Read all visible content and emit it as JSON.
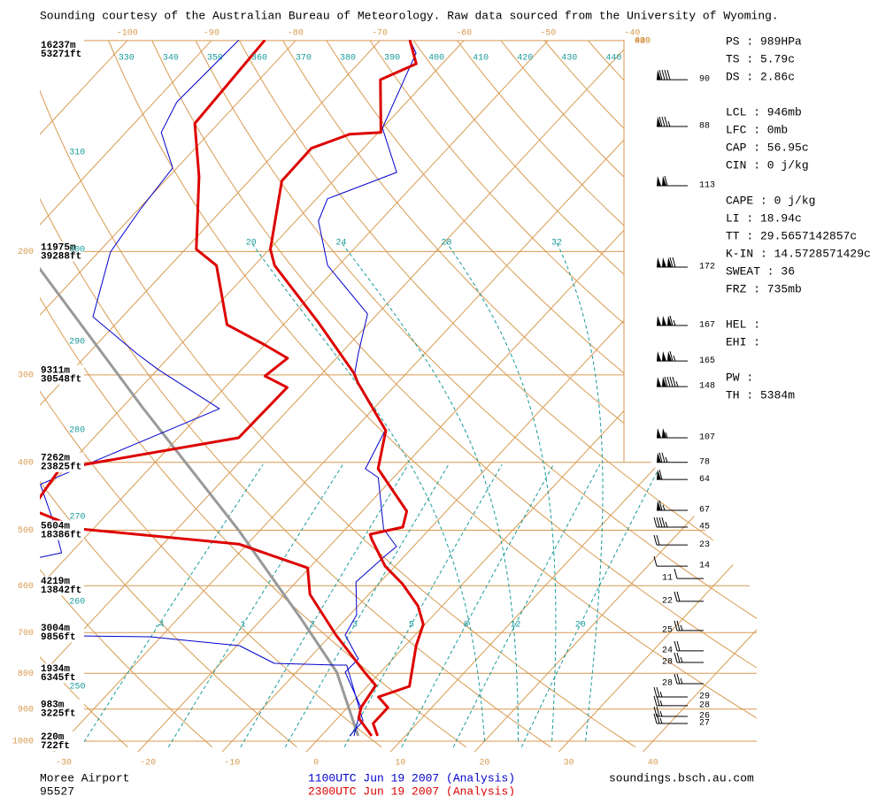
{
  "chart_data": {
    "type": "skewt",
    "header": "Sounding courtesy of the Australian Bureau of Meteorology.  Raw data sourced from the University of Wyoming.",
    "ylim": [
      1000,
      100
    ],
    "yticks": [
      1000,
      900,
      800,
      700,
      600,
      500,
      400,
      300,
      200
    ],
    "levels": [
      {
        "pressure": 100,
        "height_m": "16237m",
        "height_ft": "53271ft"
      },
      {
        "pressure": 200,
        "height_m": "11975m",
        "height_ft": "39288ft"
      },
      {
        "pressure": 300,
        "height_m": "9311m",
        "height_ft": "30548ft"
      },
      {
        "pressure": 400,
        "height_m": "7262m",
        "height_ft": "23825ft"
      },
      {
        "pressure": 500,
        "height_m": "5604m",
        "height_ft": "18386ft"
      },
      {
        "pressure": 600,
        "height_m": "4219m",
        "height_ft": "13842ft"
      },
      {
        "pressure": 700,
        "height_m": "3004m",
        "height_ft": "9856ft"
      },
      {
        "pressure": 800,
        "height_m": "1934m",
        "height_ft": "6345ft"
      },
      {
        "pressure": 900,
        "height_m": "983m",
        "height_ft": "3225ft"
      },
      {
        "pressure": 1000,
        "height_m": "220m",
        "height_ft": "722ft"
      }
    ],
    "xticks": [
      -30,
      -20,
      -10,
      0,
      10,
      20,
      30,
      40
    ],
    "isotherm_top": [
      -100,
      -90,
      -80,
      -70,
      -60,
      -50,
      -40
    ],
    "isotherm_edge": [
      -30,
      -20,
      -10,
      0,
      30,
      40
    ],
    "dry_adiabats": [
      250,
      260,
      270,
      280,
      290,
      300,
      310,
      330,
      340,
      350,
      360,
      370,
      380,
      390,
      400,
      410,
      420,
      430,
      440
    ],
    "moist_adiabats": [
      20,
      24,
      28,
      32
    ],
    "mixing_ratios": [
      {
        "value": 0.4,
        "label": ".4"
      },
      1,
      2,
      3,
      5,
      8,
      12,
      20
    ],
    "grid_colors": {
      "isotherm": "#d89a50",
      "adiabat": "#1a9a9a"
    },
    "soundings": [
      {
        "name": "1100UTC Jun 19 2007 (Analysis)",
        "color": "#0000cc",
        "line_width": 1,
        "temperature": {
          "pressure": [
            982.7,
            895.4,
            797.1,
            763.3,
            705.6,
            659.8,
            592.6,
            543.1,
            527.6,
            497.7,
            420.5,
            408.5,
            360.4,
            301.2,
            279.8,
            245.5,
            209.4,
            181.0,
            168.2,
            154.2,
            133.3,
            104.2,
            99.8
          ],
          "values": [
            3.9,
            1.6,
            -4.2,
            -4.1,
            -8.3,
            -9.2,
            -12.9,
            -12.3,
            -12.0,
            -15.5,
            -21.8,
            -24.3,
            -26.2,
            -35.9,
            -37.9,
            -41.2,
            -51.3,
            -57.3,
            -58.7,
            -53.4,
            -60.0,
            -64.3,
            -66.5
          ]
        },
        "dewpoint": {
          "pressure": [
            982.7,
            935.3,
            778.9,
            778.9,
            774.3,
            730.6,
            709.6,
            705.6,
            null,
            562.5,
            538.4,
            486.3,
            430.0,
            396.7,
            351.1,
            335.3,
            295.2,
            279.8,
            247.9,
            200.3,
            173.2,
            152.0,
            135.2,
            122.4,
            99.8
          ],
          "values": [
            3.4,
            3.3,
            -4.8,
            -6.0,
            -13.6,
            -19.7,
            -31.3,
            -49.3,
            null,
            -57.0,
            -51.1,
            -55.5,
            -61.2,
            -57.1,
            -50.7,
            -48.3,
            -59.8,
            -64.2,
            -73.5,
            -78.6,
            -79.8,
            -80.5,
            -85.8,
            -87.3,
            -86.8
          ]
        }
      },
      {
        "name": "2300UTC Jun 19 2007 (Analysis)",
        "color": "#dd0000",
        "line_width": 3,
        "temperature": {
          "pressure": [
            982.7,
            943.5,
            895.4,
            864.8,
            835.0,
            730.6,
            681.2,
            640.9,
            596.0,
            562.5,
            515.5,
            506.6,
            494.9,
            469.6,
            408.5,
            360.4,
            307.4,
            298.6,
            252.9,
            209.4,
            198.5,
            158.6,
            142.5,
            136.0,
            135.2,
            113.7,
            107.9,
            99.8
          ],
          "values": [
            6.7,
            4.8,
            4.8,
            2.5,
            5.0,
            1.3,
            -0.2,
            -2.9,
            -7.2,
            -11.2,
            -15.7,
            -16.5,
            -13.4,
            -14.7,
            -22.8,
            -26.1,
            -34.8,
            -36.2,
            -46.0,
            -57.6,
            -59.9,
            -66.1,
            -66.2,
            -63.2,
            -59.7,
            -65.6,
            -63.1,
            -66.5
          ]
        },
        "dewpoint": {
          "pressure": [
            982.7,
            927.2,
            895.4,
            832.6,
            797.1,
            705.6,
            617.2,
            565.8,
            523.2,
            497.7,
            466.9,
            408.5,
            368.9,
            312.7,
            301.2,
            284.0,
            271.5,
            254.4,
            209.4,
            198.5,
            156.4,
            131.3,
            99.8
          ],
          "values": [
            6.0,
            2.5,
            1.6,
            0.9,
            -1.9,
            -9.4,
            -17.0,
            -20.2,
            -31.0,
            -51.6,
            -59.5,
            -60.6,
            -42.8,
            -42.6,
            -46.5,
            -45.8,
            -50.1,
            -56.7,
            -64.5,
            -68.7,
            -76.4,
            -82.8,
            -83.7
          ]
        }
      }
    ],
    "parcel": {
      "color": "#999999",
      "line_width": 3,
      "pressure": [
        982.7,
        797.1,
        669.3,
        500.5,
        333.3,
        209.4
      ],
      "values": [
        4.4,
        -5.2,
        -15.3,
        -32.5,
        -57.7,
        -85.8
      ]
    },
    "barbs_right": [
      {
        "pressure": 113.7,
        "speed": 90
      },
      {
        "pressure": 132.6,
        "speed": 88
      },
      {
        "pressure": 161.1,
        "speed": 113
      },
      {
        "pressure": 210.5,
        "speed": 172
      },
      {
        "pressure": 255.1,
        "speed": 167
      },
      {
        "pressure": 286.6,
        "speed": 165
      },
      {
        "pressure": 311.8,
        "speed": 148
      },
      {
        "pressure": 368.9,
        "speed": 107
      },
      {
        "pressure": 400.0,
        "speed": 78
      },
      {
        "pressure": 423.1,
        "speed": 64
      },
      {
        "pressure": 468.2,
        "speed": 67
      },
      {
        "pressure": 494.9,
        "speed": 45
      },
      {
        "pressure": 524.7,
        "speed": 23
      },
      {
        "pressure": 562.5,
        "speed": 14
      },
      {
        "pressure": 864.8,
        "speed": 29
      },
      {
        "pressure": 890.0,
        "speed": 28
      },
      {
        "pressure": 921.8,
        "speed": 26
      },
      {
        "pressure": 943.5,
        "speed": 27
      }
    ],
    "barbs_left": [
      {
        "pressure": 585.9,
        "speed": 11
      },
      {
        "pressure": 631.6,
        "speed": 22
      },
      {
        "pressure": 695.0,
        "speed": 25
      },
      {
        "pressure": 743.1,
        "speed": 24
      },
      {
        "pressure": 772.1,
        "speed": 28
      },
      {
        "pressure": 827.8,
        "speed": 28
      }
    ],
    "stats": [
      [
        "PS : 989HPa",
        "TS : 5.79c",
        "DS : 2.86c"
      ],
      [
        "LCL : 946mb",
        "LFC : 0mb",
        "CAP : 56.95c",
        "CIN : 0 j/kg"
      ],
      [
        "CAPE : 0 j/kg",
        "LI : 18.94c",
        "TT : 29.5657142857c",
        "K-IN : 14.5728571429c",
        "SWEAT : 36",
        "FRZ : 735mb"
      ],
      [
        "HEL :",
        "EHI :"
      ],
      [
        "PW :",
        "TH : 5384m"
      ]
    ],
    "station": "Moree Airport",
    "station_id": "95527",
    "site": "soundings.bsch.au.com"
  }
}
